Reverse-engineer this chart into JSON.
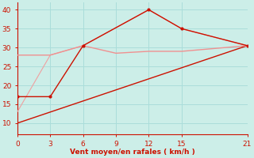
{
  "bg_color": "#cceee8",
  "grid_color": "#aaddda",
  "line_dark": "#cc1100",
  "line_light": "#f09090",
  "line_light2": "#f0a0a0",
  "xlabel": "Vent moyen/en rafales ( km/h )",
  "xlabel_color": "#cc1100",
  "tick_color": "#cc1100",
  "ylim": [
    7,
    42
  ],
  "xlim": [
    0,
    21
  ],
  "yticks": [
    10,
    15,
    20,
    25,
    30,
    35,
    40
  ],
  "xticks": [
    0,
    3,
    6,
    9,
    12,
    15,
    21
  ],
  "trend_x": [
    0,
    21
  ],
  "trend_y": [
    10,
    30.5
  ],
  "gusts_x": [
    0,
    3,
    6,
    12,
    15,
    21
  ],
  "gusts_y": [
    17,
    17,
    30.5,
    40,
    35,
    30.5
  ],
  "avg_x": [
    0,
    3,
    6,
    9,
    12,
    15,
    21
  ],
  "avg_y": [
    28,
    28,
    30.5,
    28.5,
    29,
    29,
    30.5
  ],
  "jagged_x": [
    0,
    3,
    6,
    12,
    15,
    21
  ],
  "jagged_y": [
    13,
    28,
    30.5,
    40,
    35,
    30.5
  ]
}
